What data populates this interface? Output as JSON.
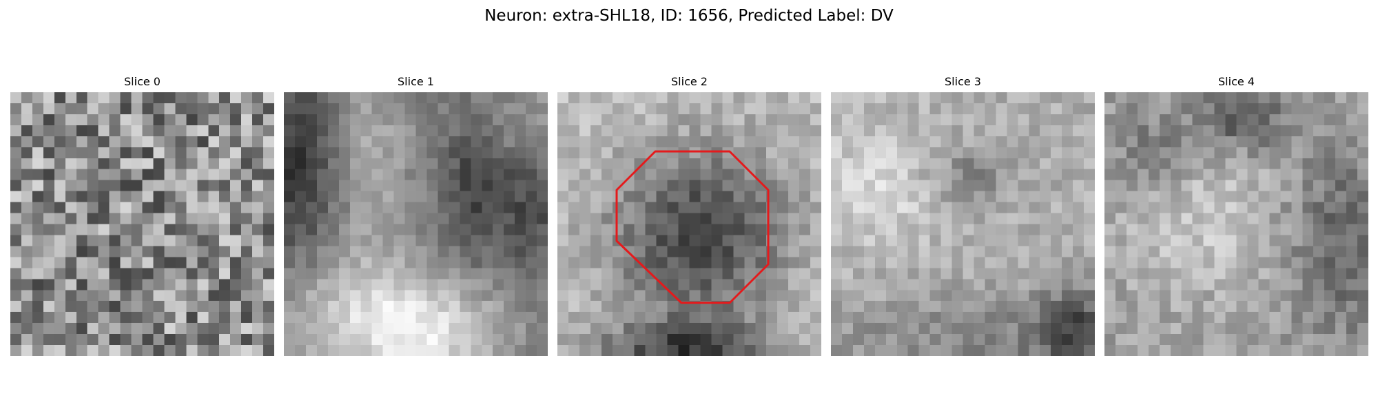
{
  "figure": {
    "title": "Neuron: extra-SHL18, ID: 1656, Predicted Label: DV"
  },
  "panels": [
    {
      "title": "Slice 0"
    },
    {
      "title": "Slice 1"
    },
    {
      "title": "Slice 2",
      "has_roi": true
    },
    {
      "title": "Slice 3"
    },
    {
      "title": "Slice 4"
    }
  ],
  "colors": {
    "roi_outline": "#e41a1c",
    "colormap": "gray"
  }
}
